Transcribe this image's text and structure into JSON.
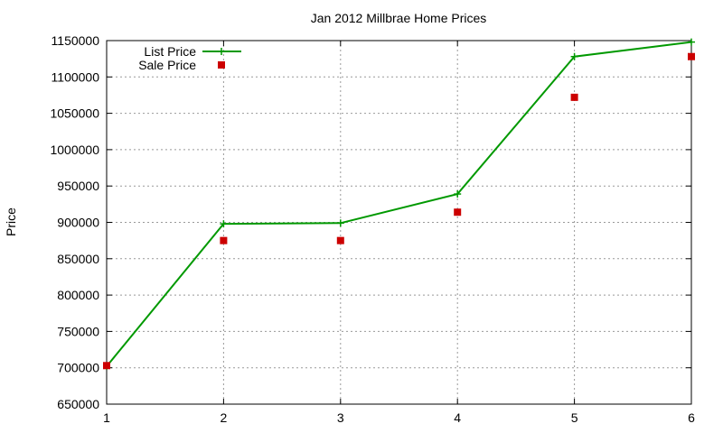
{
  "chart_data": {
    "type": "line",
    "title": "Jan 2012 Millbrae Home Prices",
    "xlabel": "",
    "ylabel": "Price",
    "xlim": [
      1,
      6
    ],
    "ylim": [
      650000,
      1150000
    ],
    "x_ticks": [
      1,
      2,
      3,
      4,
      5,
      6
    ],
    "y_ticks": [
      650000,
      700000,
      750000,
      800000,
      850000,
      900000,
      950000,
      1000000,
      1050000,
      1100000,
      1150000
    ],
    "grid": true,
    "legend_position": "top-left",
    "x": [
      1,
      2,
      3,
      4,
      5,
      6
    ],
    "series": [
      {
        "name": "List Price",
        "style": "line-plus",
        "color": "#009900",
        "values": [
          702000,
          898000,
          899000,
          939000,
          1128000,
          1148000
        ]
      },
      {
        "name": "Sale Price",
        "style": "square-points",
        "color": "#cc0000",
        "values": [
          703000,
          875000,
          875000,
          914000,
          1072000,
          1128000
        ]
      }
    ]
  }
}
